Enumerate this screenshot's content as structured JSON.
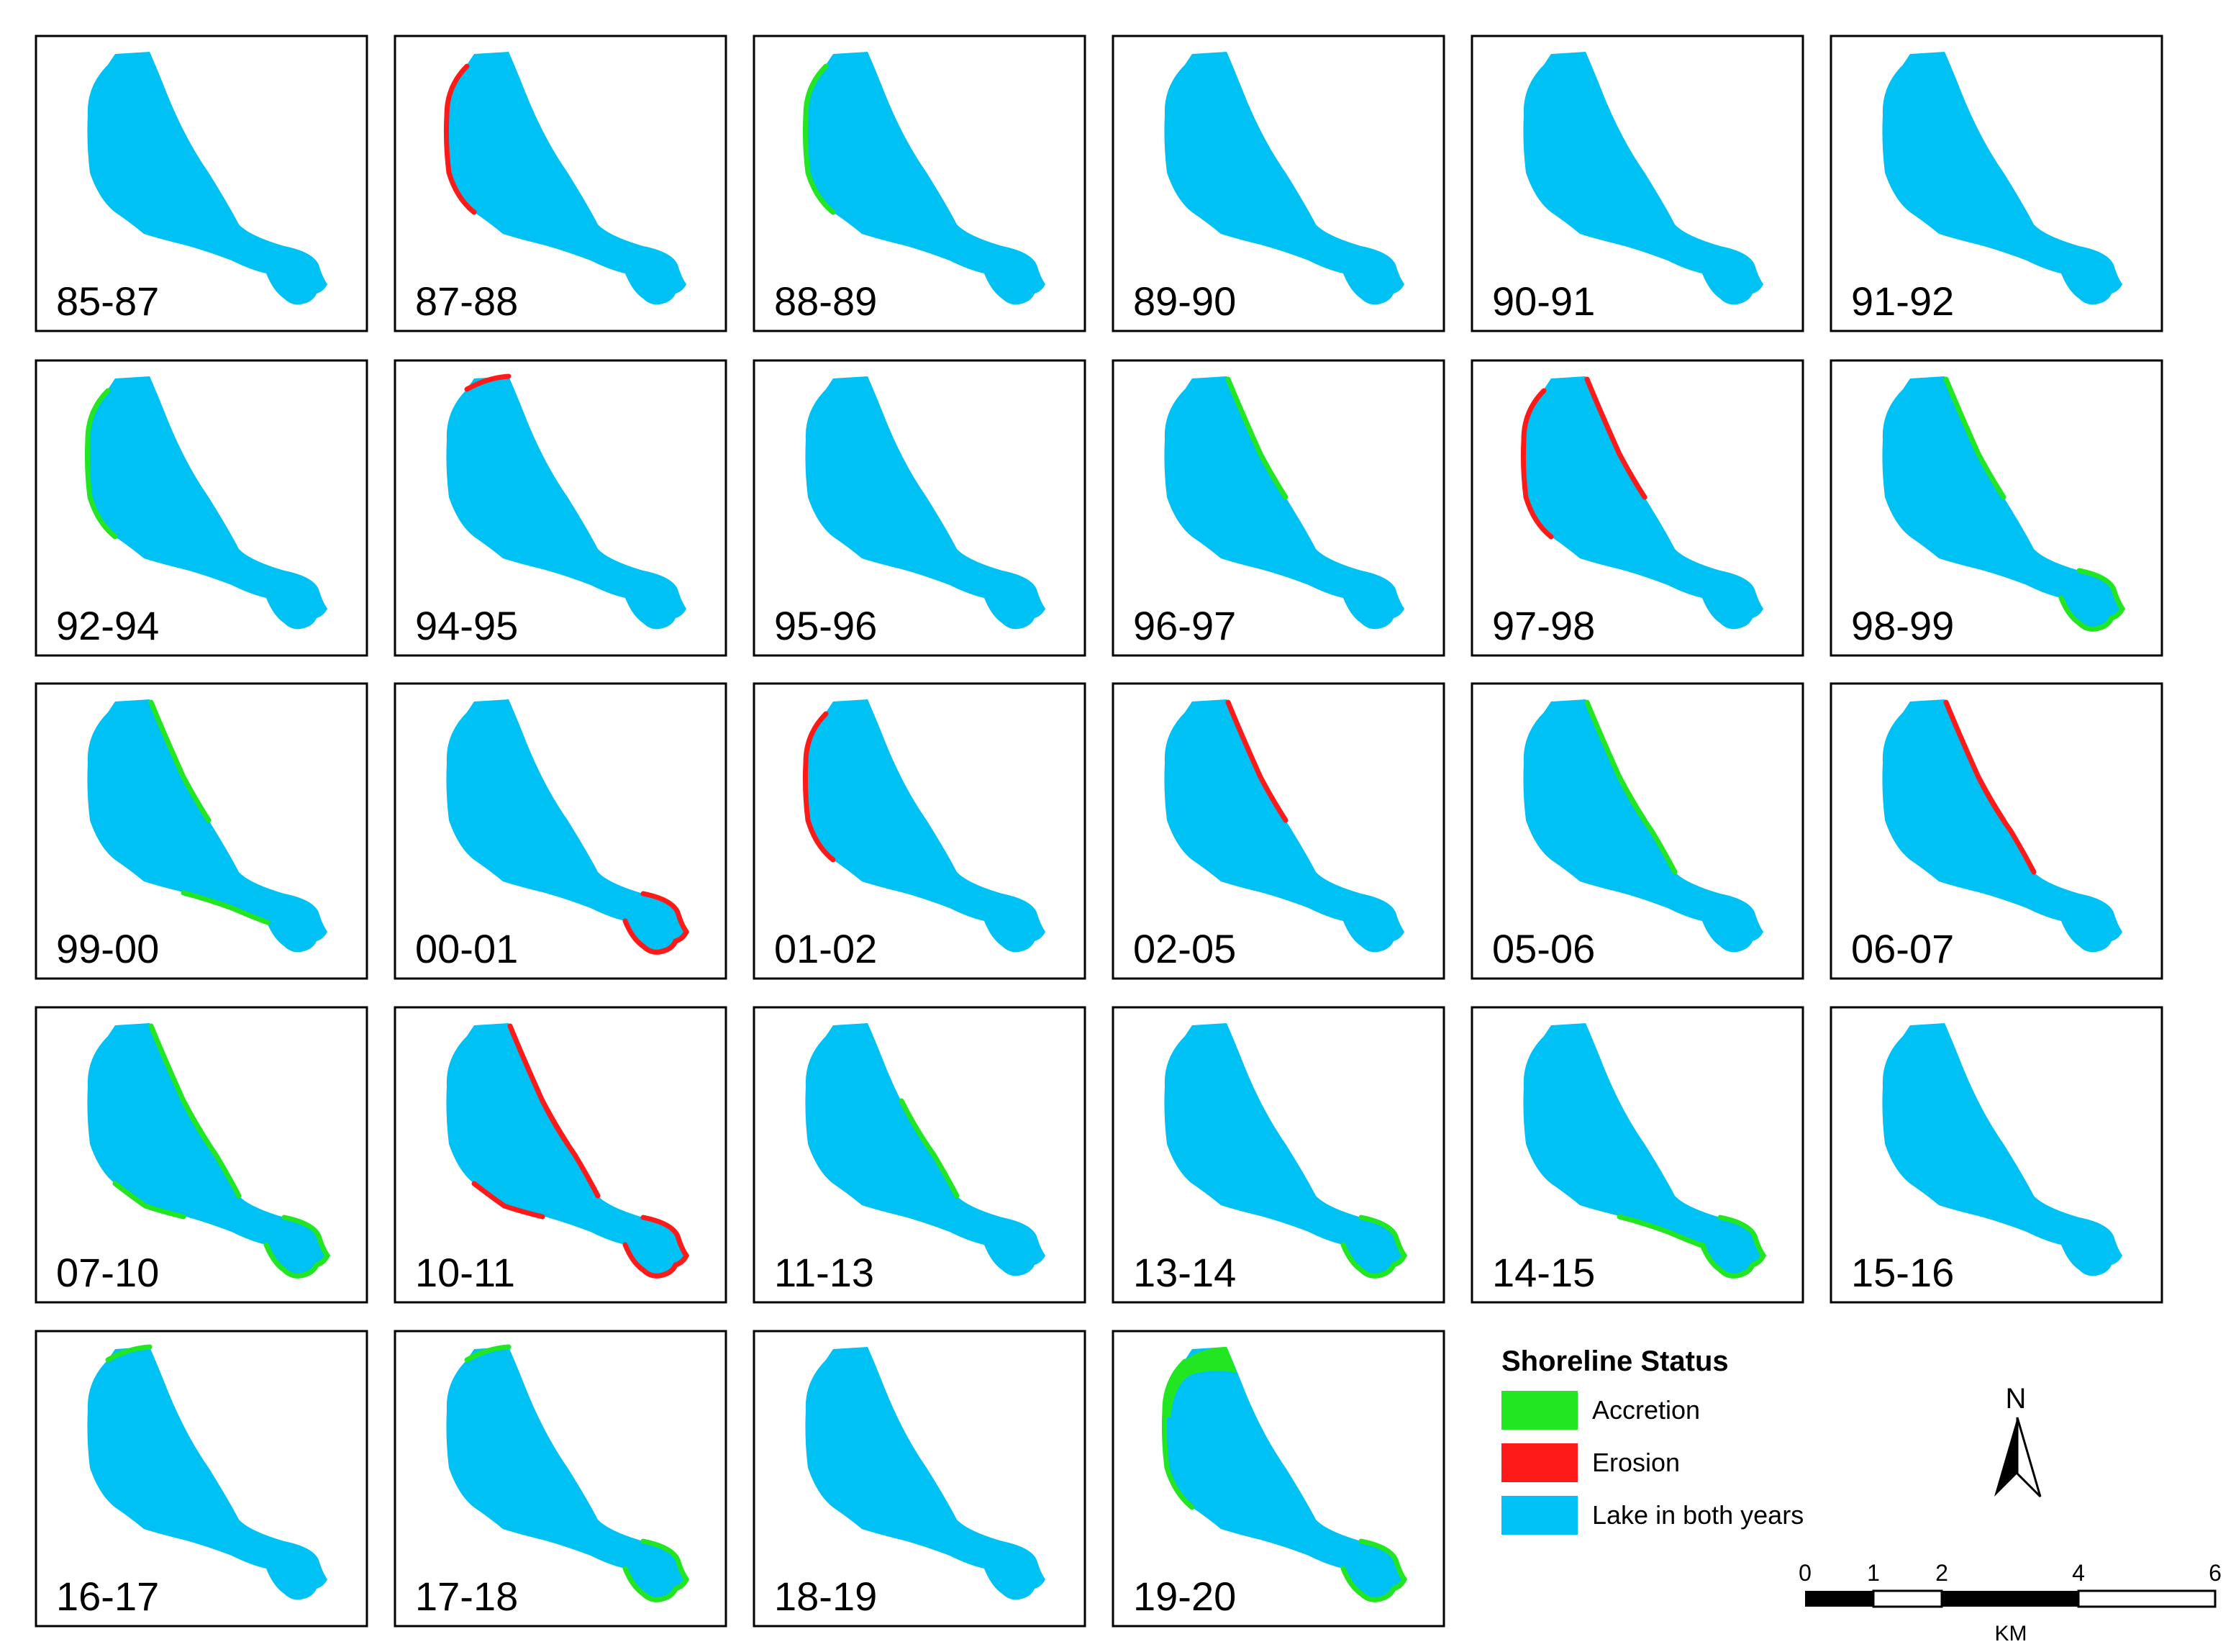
{
  "colors": {
    "accretion": "#22e622",
    "erosion": "#ff1a1a",
    "lake": "#00c1f3"
  },
  "panels": [
    {
      "label": "85-87",
      "accretion": [],
      "erosion": []
    },
    {
      "label": "87-88",
      "accretion": [],
      "erosion": [
        "west-coast"
      ]
    },
    {
      "label": "88-89",
      "accretion": [
        "west-coast"
      ],
      "erosion": []
    },
    {
      "label": "89-90",
      "accretion": [],
      "erosion": []
    },
    {
      "label": "90-91",
      "accretion": [],
      "erosion": []
    },
    {
      "label": "91-92",
      "accretion": [],
      "erosion": []
    },
    {
      "label": "92-94",
      "accretion": [
        "west-coast"
      ],
      "erosion": []
    },
    {
      "label": "94-95",
      "accretion": [],
      "erosion": [
        "top-cap"
      ]
    },
    {
      "label": "95-96",
      "accretion": [],
      "erosion": []
    },
    {
      "label": "96-97",
      "accretion": [
        "northeast-upper"
      ],
      "erosion": []
    },
    {
      "label": "97-98",
      "accretion": [],
      "erosion": [
        "northeast-upper",
        "west-coast"
      ]
    },
    {
      "label": "98-99",
      "accretion": [
        "northeast-upper",
        "arm-tip"
      ],
      "erosion": []
    },
    {
      "label": "99-00",
      "accretion": [
        "northeast-upper",
        "arm-south"
      ],
      "erosion": []
    },
    {
      "label": "00-01",
      "accretion": [],
      "erosion": [
        "arm-tip"
      ]
    },
    {
      "label": "01-02",
      "accretion": [],
      "erosion": [
        "west-coast"
      ]
    },
    {
      "label": "02-05",
      "accretion": [],
      "erosion": [
        "northeast-upper"
      ]
    },
    {
      "label": "05-06",
      "accretion": [
        "northeast-upper",
        "northeast-lower"
      ],
      "erosion": []
    },
    {
      "label": "06-07",
      "accretion": [],
      "erosion": [
        "northeast-upper",
        "northeast-lower"
      ]
    },
    {
      "label": "07-10",
      "accretion": [
        "northeast-upper",
        "northeast-lower",
        "southwest",
        "arm-tip"
      ],
      "erosion": []
    },
    {
      "label": "10-11",
      "accretion": [],
      "erosion": [
        "northeast-upper",
        "northeast-lower",
        "southwest",
        "arm-tip"
      ]
    },
    {
      "label": "11-13",
      "accretion": [
        "northeast-lower"
      ],
      "erosion": []
    },
    {
      "label": "13-14",
      "accretion": [
        "arm-tip"
      ],
      "erosion": []
    },
    {
      "label": "14-15",
      "accretion": [
        "arm-south",
        "arm-tip"
      ],
      "erosion": []
    },
    {
      "label": "15-16",
      "accretion": [],
      "erosion": []
    },
    {
      "label": "16-17",
      "accretion": [
        "top-cap"
      ],
      "erosion": []
    },
    {
      "label": "17-18",
      "accretion": [
        "top-cap",
        "arm-tip"
      ],
      "erosion": []
    },
    {
      "label": "18-19",
      "accretion": [],
      "erosion": []
    },
    {
      "label": "19-20",
      "accretion": [
        "top-cap-wide",
        "west-coast",
        "arm-tip"
      ],
      "erosion": []
    }
  ],
  "legend": {
    "title": "Shoreline Status",
    "items": [
      {
        "key": "accretion",
        "label": "Accretion"
      },
      {
        "key": "erosion",
        "label": "Erosion"
      },
      {
        "key": "lake",
        "label": "Lake in both years"
      }
    ]
  },
  "north_arrow": {
    "letter": "N"
  },
  "scale_bar": {
    "ticks": [
      "0",
      "1",
      "2",
      "4",
      "6"
    ],
    "unit": "KM"
  }
}
